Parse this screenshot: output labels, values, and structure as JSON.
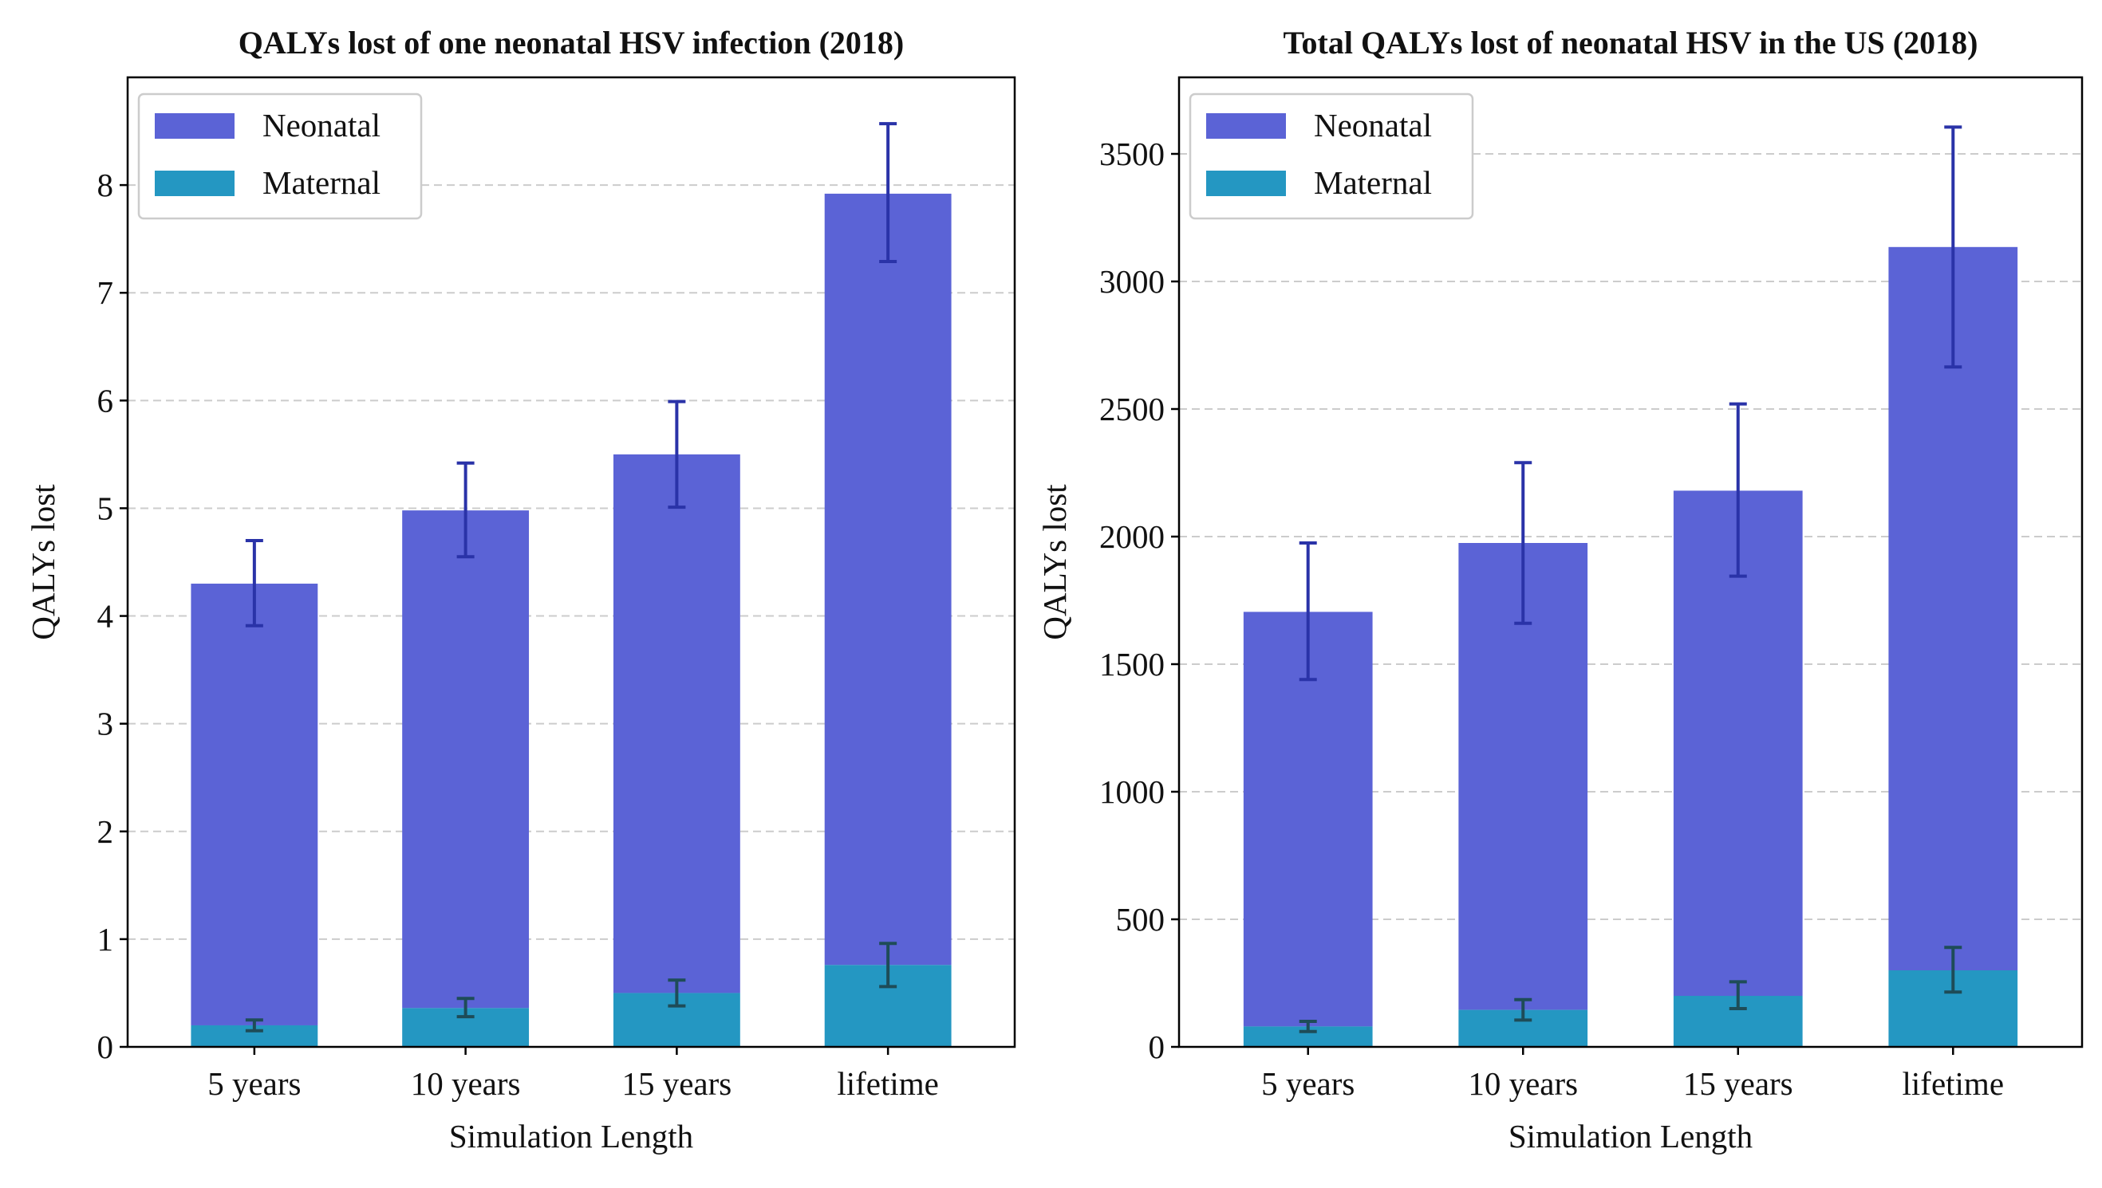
{
  "chart_data": [
    {
      "type": "bar",
      "stacked": true,
      "title": "QALYs lost of one neonatal HSV infection (2018)",
      "xlabel": "Simulation Length",
      "ylabel": "QALYs lost",
      "categories": [
        "5 years",
        "10 years",
        "15 years",
        "lifetime"
      ],
      "ylim": [
        0,
        9
      ],
      "yticks": [
        0,
        1,
        2,
        3,
        4,
        5,
        6,
        7,
        8
      ],
      "grid": "y-dashed",
      "legend_position": "upper-left",
      "series": [
        {
          "name": "Maternal",
          "color": "#2497c2",
          "values": [
            0.2,
            0.36,
            0.5,
            0.76
          ],
          "error": [
            [
              0.15,
              0.25
            ],
            [
              0.28,
              0.45
            ],
            [
              0.38,
              0.62
            ],
            [
              0.56,
              0.96
            ]
          ]
        },
        {
          "name": "Neonatal",
          "color": "#5b63d6",
          "values": [
            4.3,
            4.98,
            5.5,
            7.92
          ],
          "error": [
            [
              3.91,
              4.7
            ],
            [
              4.55,
              5.42
            ],
            [
              5.01,
              5.99
            ],
            [
              7.29,
              8.57
            ]
          ]
        }
      ],
      "legend_order": [
        "Neonatal",
        "Maternal"
      ]
    },
    {
      "type": "bar",
      "stacked": true,
      "title": "Total QALYs lost of neonatal HSV in the US (2018)",
      "xlabel": "Simulation Length",
      "ylabel": "QALYs lost",
      "categories": [
        "5 years",
        "10 years",
        "15 years",
        "lifetime"
      ],
      "ylim": [
        0,
        3800
      ],
      "yticks": [
        0,
        500,
        1000,
        1500,
        2000,
        2500,
        3000,
        3500
      ],
      "grid": "y-dashed",
      "legend_position": "upper-left",
      "series": [
        {
          "name": "Maternal",
          "color": "#2497c2",
          "values": [
            80,
            145,
            200,
            300
          ],
          "error": [
            [
              60,
              100
            ],
            [
              105,
              185
            ],
            [
              150,
              255
            ],
            [
              215,
              390
            ]
          ]
        },
        {
          "name": "Neonatal",
          "color": "#5b63d6",
          "values": [
            1705,
            1975,
            2180,
            3135
          ],
          "error": [
            [
              1440,
              1975
            ],
            [
              1660,
              2290
            ],
            [
              1845,
              2520
            ],
            [
              2665,
              3605
            ]
          ]
        }
      ],
      "legend_order": [
        "Neonatal",
        "Maternal"
      ]
    }
  ],
  "colors": {
    "neonatal_errorbar": "#2a33a8",
    "maternal_errorbar": "#1e4c58",
    "grid": "#cccccc"
  }
}
